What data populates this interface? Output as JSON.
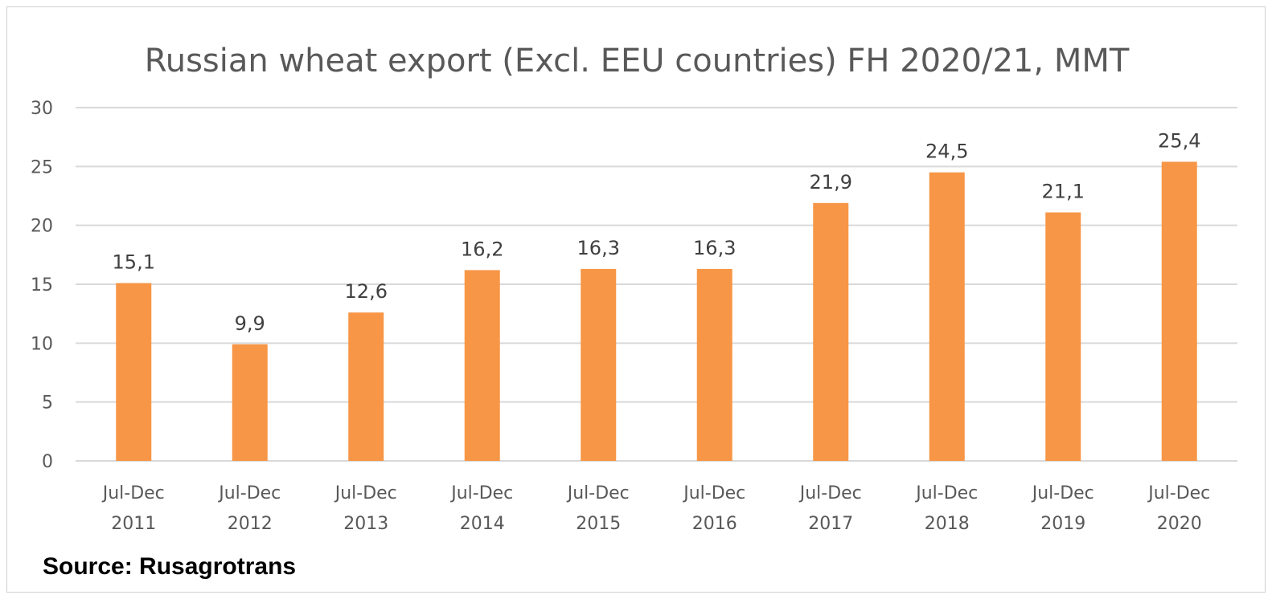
{
  "chart_data": {
    "type": "bar",
    "title": "Russian wheat export (Excl. EEU countries) FH 2020/21, MMT",
    "categories": [
      [
        "Jul-Dec",
        "2011"
      ],
      [
        "Jul-Dec",
        "2012"
      ],
      [
        "Jul-Dec",
        "2013"
      ],
      [
        "Jul-Dec",
        "2014"
      ],
      [
        "Jul-Dec",
        "2015"
      ],
      [
        "Jul-Dec",
        "2016"
      ],
      [
        "Jul-Dec",
        "2017"
      ],
      [
        "Jul-Dec",
        "2018"
      ],
      [
        "Jul-Dec",
        "2019"
      ],
      [
        "Jul-Dec",
        "2020"
      ]
    ],
    "values": [
      15.1,
      9.9,
      12.6,
      16.2,
      16.3,
      16.3,
      21.9,
      24.5,
      21.1,
      25.4
    ],
    "value_labels": [
      "15,1",
      "9,9",
      "12,6",
      "16,2",
      "16,3",
      "16,3",
      "21,9",
      "24,5",
      "21,1",
      "25,4"
    ],
    "ylim": [
      0,
      30
    ],
    "yticks": [
      0,
      5,
      10,
      15,
      20,
      25,
      30
    ],
    "grid": true,
    "legend": "none",
    "bar_color": "#F79646",
    "source": "Source: Rusagrotrans"
  }
}
